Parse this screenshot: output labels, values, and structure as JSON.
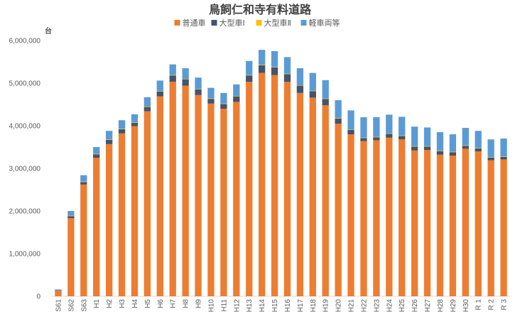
{
  "chart_data": {
    "type": "bar",
    "stacked": true,
    "title": "鳥飼仁和寺有料道路",
    "ylabel_unit": "台",
    "ylim": [
      0,
      6000000
    ],
    "yticks": [
      0,
      1000000,
      2000000,
      3000000,
      4000000,
      5000000,
      6000000
    ],
    "ytick_labels": [
      "0",
      "1,000,000",
      "2,000,000",
      "3,000,000",
      "4,000,000",
      "5,000,000",
      "6,000,000"
    ],
    "grid": false,
    "legend_position": "top",
    "categories": [
      "S61",
      "S62",
      "S63",
      "H1",
      "H2",
      "H3",
      "H4",
      "H5",
      "H6",
      "H7",
      "H8",
      "H9",
      "H10",
      "H11",
      "H12",
      "H13",
      "H14",
      "H15",
      "H16",
      "H17",
      "H18",
      "H19",
      "H20",
      "H21",
      "H22",
      "H23",
      "H24",
      "H25",
      "H26",
      "H27",
      "H28",
      "H29",
      "H30",
      "R 1",
      "R 2",
      "R 3"
    ],
    "series": [
      {
        "name": "普通車",
        "color": "#ed7d31",
        "values": [
          130000,
          1830000,
          2620000,
          3250000,
          3570000,
          3820000,
          3990000,
          4340000,
          4690000,
          5030000,
          4940000,
          4720000,
          4520000,
          4400000,
          4560000,
          5030000,
          5240000,
          5190000,
          5030000,
          4770000,
          4660000,
          4480000,
          4050000,
          3800000,
          3640000,
          3660000,
          3720000,
          3680000,
          3420000,
          3430000,
          3320000,
          3300000,
          3460000,
          3400000,
          3190000,
          3210000
        ]
      },
      {
        "name": "大型車Ⅰ",
        "color": "#44546a",
        "values": [
          10000,
          50000,
          60000,
          80000,
          100000,
          100000,
          80000,
          100000,
          110000,
          150000,
          150000,
          130000,
          110000,
          110000,
          130000,
          150000,
          180000,
          180000,
          180000,
          170000,
          150000,
          150000,
          120000,
          100000,
          70000,
          70000,
          90000,
          80000,
          90000,
          80000,
          80000,
          80000,
          70000,
          70000,
          60000,
          60000
        ]
      },
      {
        "name": "大型車Ⅱ",
        "color": "#ffc000",
        "values": [
          0,
          10000,
          10000,
          10000,
          10000,
          10000,
          10000,
          10000,
          10000,
          10000,
          10000,
          10000,
          10000,
          10000,
          10000,
          10000,
          10000,
          10000,
          10000,
          10000,
          10000,
          10000,
          10000,
          10000,
          10000,
          10000,
          10000,
          10000,
          10000,
          10000,
          10000,
          10000,
          10000,
          10000,
          10000,
          10000
        ]
      },
      {
        "name": "軽車両等",
        "color": "#5b9bd5",
        "values": [
          20000,
          110000,
          150000,
          160000,
          200000,
          200000,
          190000,
          220000,
          250000,
          250000,
          250000,
          270000,
          250000,
          250000,
          270000,
          330000,
          350000,
          370000,
          390000,
          400000,
          420000,
          430000,
          420000,
          450000,
          480000,
          460000,
          440000,
          440000,
          460000,
          440000,
          440000,
          410000,
          410000,
          400000,
          420000,
          420000
        ]
      }
    ]
  }
}
